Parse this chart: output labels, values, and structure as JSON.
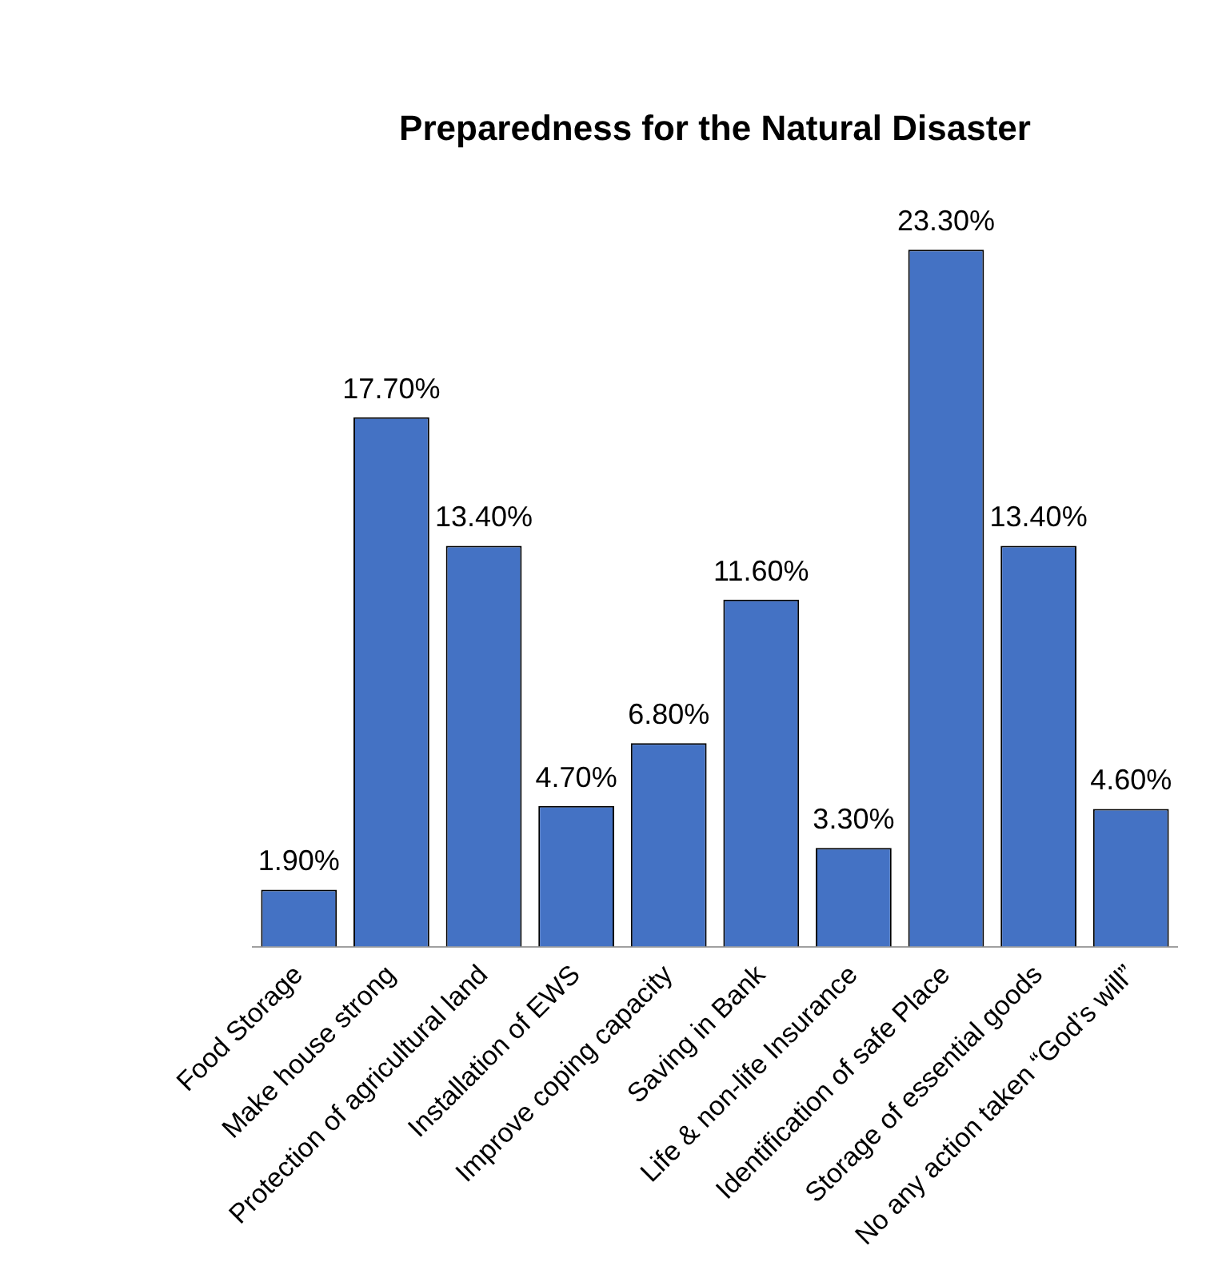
{
  "chart_data": {
    "type": "bar",
    "title": "Preparedness for the Natural Disaster",
    "categories": [
      "Food Storage",
      "Make house strong",
      "Protection of agricultural land",
      "Installation of EWS",
      "Improve coping capacity",
      "Saving in Bank",
      "Life & non-life Insurance",
      "Identification of safe Place",
      "Storage of essential goods",
      "No any action taken “God’s will”"
    ],
    "values": [
      1.9,
      17.7,
      13.4,
      4.7,
      6.8,
      11.6,
      3.3,
      23.3,
      13.4,
      4.6
    ],
    "value_labels": [
      "1.90%",
      "17.70%",
      "13.40%",
      "4.70%",
      "6.80%",
      "11.60%",
      "3.30%",
      "23.30%",
      "13.40%",
      "4.60%"
    ],
    "color": "#4472c4",
    "grid": false,
    "legend": false
  }
}
